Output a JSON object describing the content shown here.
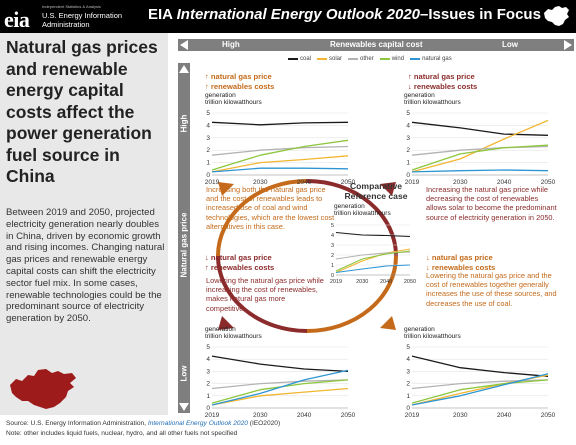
{
  "header": {
    "logo_mark": "eia",
    "logo_tiny": "Independent Statistics & Analysis",
    "logo_line1": "U.S. Energy Information",
    "logo_line2": "Administration",
    "title_prefix": "EIA ",
    "title_italic": "International Energy Outlook 2020",
    "title_suffix": "–Issues in Focus"
  },
  "left_panel": {
    "headline": "Natural gas prices and renewable energy capital costs affect the power generation fuel source in China",
    "body": "Between 2019 and 2050, projected electricity generation nearly doubles in China, driven by economic growth and rising incomes. Changing natural gas prices and renewable energy capital costs can shift the electricity sector fuel mix. In some cases, renewable technologies could be the predominant source of electricity generation by 2050."
  },
  "axes": {
    "top_high": "High",
    "top_title": "Renewables capital cost",
    "top_low": "Low",
    "left_high": "High",
    "left_title": "Natural gas price",
    "left_low": "Low"
  },
  "legend": [
    {
      "name": "coal",
      "color": "#1a1a1a"
    },
    {
      "name": "solar",
      "color": "#f2b632"
    },
    {
      "name": "other",
      "color": "#b3b3b3"
    },
    {
      "name": "wind",
      "color": "#8dc63f"
    },
    {
      "name": "natural gas",
      "color": "#2f96d4"
    }
  ],
  "captions": {
    "tl_line1": "↑ natural gas price",
    "tl_line2": "↑ renewables costs",
    "tr_line1": "↑ natural gas price",
    "tr_line2": "↓ renewables costs",
    "bl_line1": "↓ natural gas price",
    "bl_line2": "↑ renewables costs",
    "br_line1": "↓ natural gas price",
    "br_line2": "↓ renewables costs"
  },
  "descriptions": {
    "tl": "Increasing both the natural gas price and the cost of renewables leads to increased use of coal and wind technologies, which are the lowest cost alternatives in this case.",
    "tr": "Increasing the natural gas price while decreasing the cost of renewables allows solar to become the predominant source of electricity generation in 2050.",
    "bl": "Lowering the natural gas price while increasing the cost of renewables, makes natural gas more competitive.",
    "br": "Lowering the natural gas price and the cost of renewables together generally increases the use of these sources, and decreases the use of coal."
  },
  "center": {
    "title_line1": "Comparative",
    "title_line2": "Reference case"
  },
  "y_label_line1": "generation",
  "y_label_line2": "trillion kilowatthours",
  "footer": {
    "source_prefix": "Source: U.S. Energy Information Administration, ",
    "source_italic": "International Energy Outlook 2020",
    "source_suffix": " (IEO2020)",
    "note": "Note: other includes liquid fuels, nuclear, hydro, and all other fuels not specified"
  },
  "chart_data": [
    {
      "id": "tl",
      "type": "line",
      "title": "↑ natural gas price ↑ renewables costs",
      "ylabel": "generation trillion kilowatthours",
      "x": [
        2019,
        2030,
        2040,
        2050
      ],
      "xticks": [
        "2019",
        "2030",
        "2040",
        "2050"
      ],
      "ylim": [
        0,
        5
      ],
      "yticks": [
        0,
        1,
        2,
        3,
        4,
        5
      ],
      "series": [
        {
          "name": "coal",
          "values": [
            4.25,
            4.05,
            4.2,
            4.25
          ]
        },
        {
          "name": "solar",
          "values": [
            0.25,
            1.0,
            1.25,
            1.55
          ]
        },
        {
          "name": "other",
          "values": [
            1.6,
            2.0,
            2.2,
            2.3
          ]
        },
        {
          "name": "wind",
          "values": [
            0.4,
            1.6,
            2.3,
            2.8
          ]
        },
        {
          "name": "natural gas",
          "values": [
            0.25,
            0.55,
            0.55,
            0.5
          ]
        }
      ]
    },
    {
      "id": "tr",
      "type": "line",
      "title": "↑ natural gas price ↓ renewables costs",
      "ylabel": "generation trillion kilowatthours",
      "x": [
        2019,
        2030,
        2040,
        2050
      ],
      "xticks": [
        "2019",
        "2030",
        "2040",
        "2050"
      ],
      "ylim": [
        0,
        5
      ],
      "yticks": [
        0,
        1,
        2,
        3,
        4,
        5
      ],
      "series": [
        {
          "name": "coal",
          "values": [
            4.25,
            3.8,
            3.3,
            3.2
          ]
        },
        {
          "name": "solar",
          "values": [
            0.25,
            1.3,
            2.9,
            4.4
          ]
        },
        {
          "name": "other",
          "values": [
            1.6,
            2.0,
            2.2,
            2.3
          ]
        },
        {
          "name": "wind",
          "values": [
            0.4,
            1.7,
            2.2,
            2.4
          ]
        },
        {
          "name": "natural gas",
          "values": [
            0.25,
            0.35,
            0.4,
            0.35
          ]
        }
      ]
    },
    {
      "id": "center",
      "type": "line",
      "title": "Comparative Reference case",
      "ylabel": "generation trillion kilowatthours",
      "x": [
        2019,
        2030,
        2040,
        2050
      ],
      "xticks": [
        "2019",
        "2030",
        "2040",
        "2050"
      ],
      "ylim": [
        0,
        5
      ],
      "yticks": [
        0,
        1,
        2,
        3,
        4,
        5
      ],
      "series": [
        {
          "name": "coal",
          "values": [
            4.25,
            4.0,
            3.95,
            3.85
          ]
        },
        {
          "name": "solar",
          "values": [
            0.25,
            1.4,
            2.2,
            2.6
          ]
        },
        {
          "name": "other",
          "values": [
            1.6,
            2.0,
            2.2,
            2.3
          ]
        },
        {
          "name": "wind",
          "values": [
            0.4,
            1.6,
            2.1,
            2.4
          ]
        },
        {
          "name": "natural gas",
          "values": [
            0.25,
            0.6,
            0.9,
            1.0
          ]
        }
      ]
    },
    {
      "id": "bl",
      "type": "line",
      "title": "↓ natural gas price ↑ renewables costs",
      "ylabel": "generation trillion kilowatthours",
      "x": [
        2019,
        2030,
        2040,
        2050
      ],
      "xticks": [
        "2019",
        "2030",
        "2040",
        "2050"
      ],
      "ylim": [
        0,
        5
      ],
      "yticks": [
        0,
        1,
        2,
        3,
        4,
        5
      ],
      "series": [
        {
          "name": "coal",
          "values": [
            4.25,
            3.6,
            3.2,
            3.0
          ]
        },
        {
          "name": "solar",
          "values": [
            0.25,
            1.0,
            1.3,
            1.6
          ]
        },
        {
          "name": "other",
          "values": [
            1.6,
            2.0,
            2.2,
            2.3
          ]
        },
        {
          "name": "wind",
          "values": [
            0.4,
            1.5,
            2.0,
            2.3
          ]
        },
        {
          "name": "natural gas",
          "values": [
            0.25,
            1.2,
            2.3,
            3.1
          ]
        }
      ]
    },
    {
      "id": "br",
      "type": "line",
      "title": "↓ natural gas price ↓ renewables costs",
      "ylabel": "generation trillion kilowatthours",
      "x": [
        2019,
        2030,
        2040,
        2050
      ],
      "xticks": [
        "2019",
        "2030",
        "2040",
        "2050"
      ],
      "ylim": [
        0,
        5
      ],
      "yticks": [
        0,
        1,
        2,
        3,
        4,
        5
      ],
      "series": [
        {
          "name": "coal",
          "values": [
            4.25,
            3.3,
            2.9,
            2.6
          ]
        },
        {
          "name": "solar",
          "values": [
            0.25,
            1.2,
            2.0,
            2.7
          ]
        },
        {
          "name": "other",
          "values": [
            1.6,
            2.0,
            2.2,
            2.3
          ]
        },
        {
          "name": "wind",
          "values": [
            0.4,
            1.5,
            2.0,
            2.3
          ]
        },
        {
          "name": "natural gas",
          "values": [
            0.25,
            1.0,
            1.9,
            2.8
          ]
        }
      ]
    }
  ]
}
